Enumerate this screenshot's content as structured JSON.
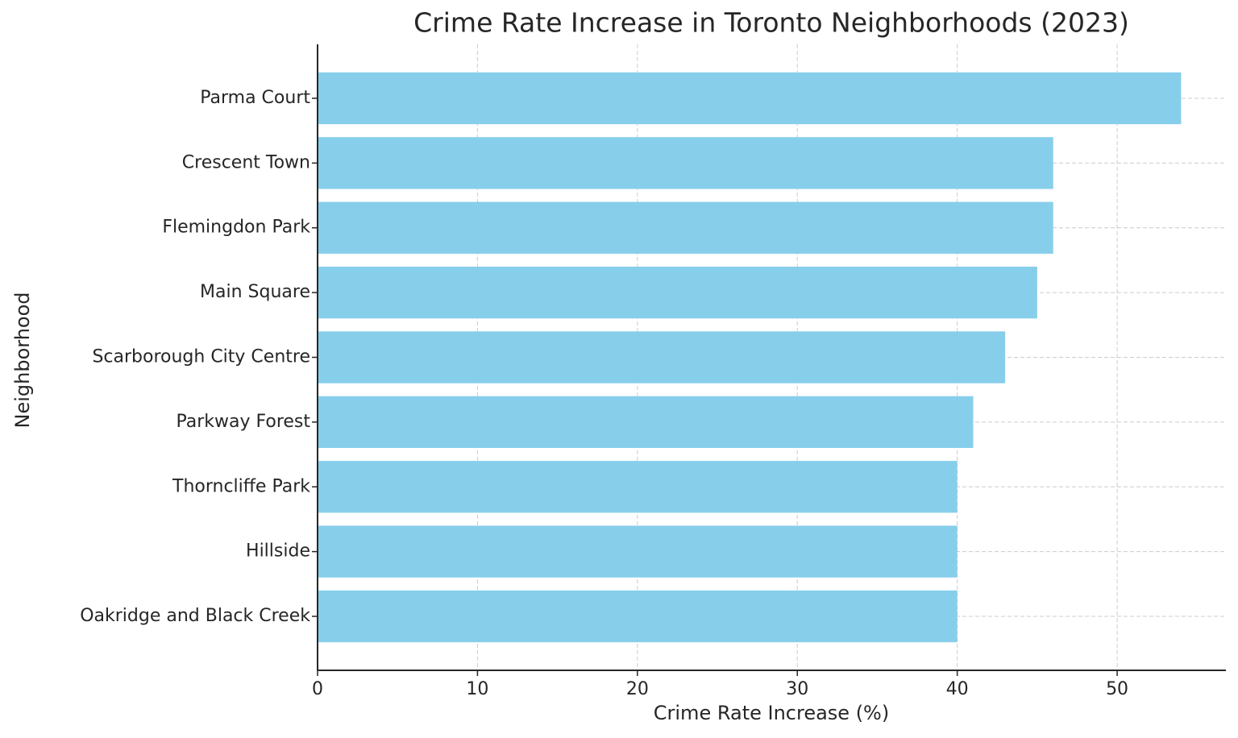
{
  "chart_data": {
    "type": "barh",
    "title": "Crime Rate Increase in Toronto Neighborhoods (2023)",
    "x_label": "Crime Rate Increase (%)",
    "y_label": "Neighborhood",
    "categories": [
      "Parma Court",
      "Crescent Town",
      "Flemingdon Park",
      "Main Square",
      "Scarborough City Centre",
      "Parkway Forest",
      "Thorncliffe Park",
      "Hillside",
      "Oakridge and Black Creek"
    ],
    "values": [
      54,
      46,
      46,
      45,
      43,
      41,
      40,
      40,
      40
    ],
    "color": "#87ceeb",
    "xlim": [
      0,
      56.8
    ],
    "xticks": [
      0,
      10,
      20,
      30,
      40,
      50
    ],
    "grid": true
  }
}
